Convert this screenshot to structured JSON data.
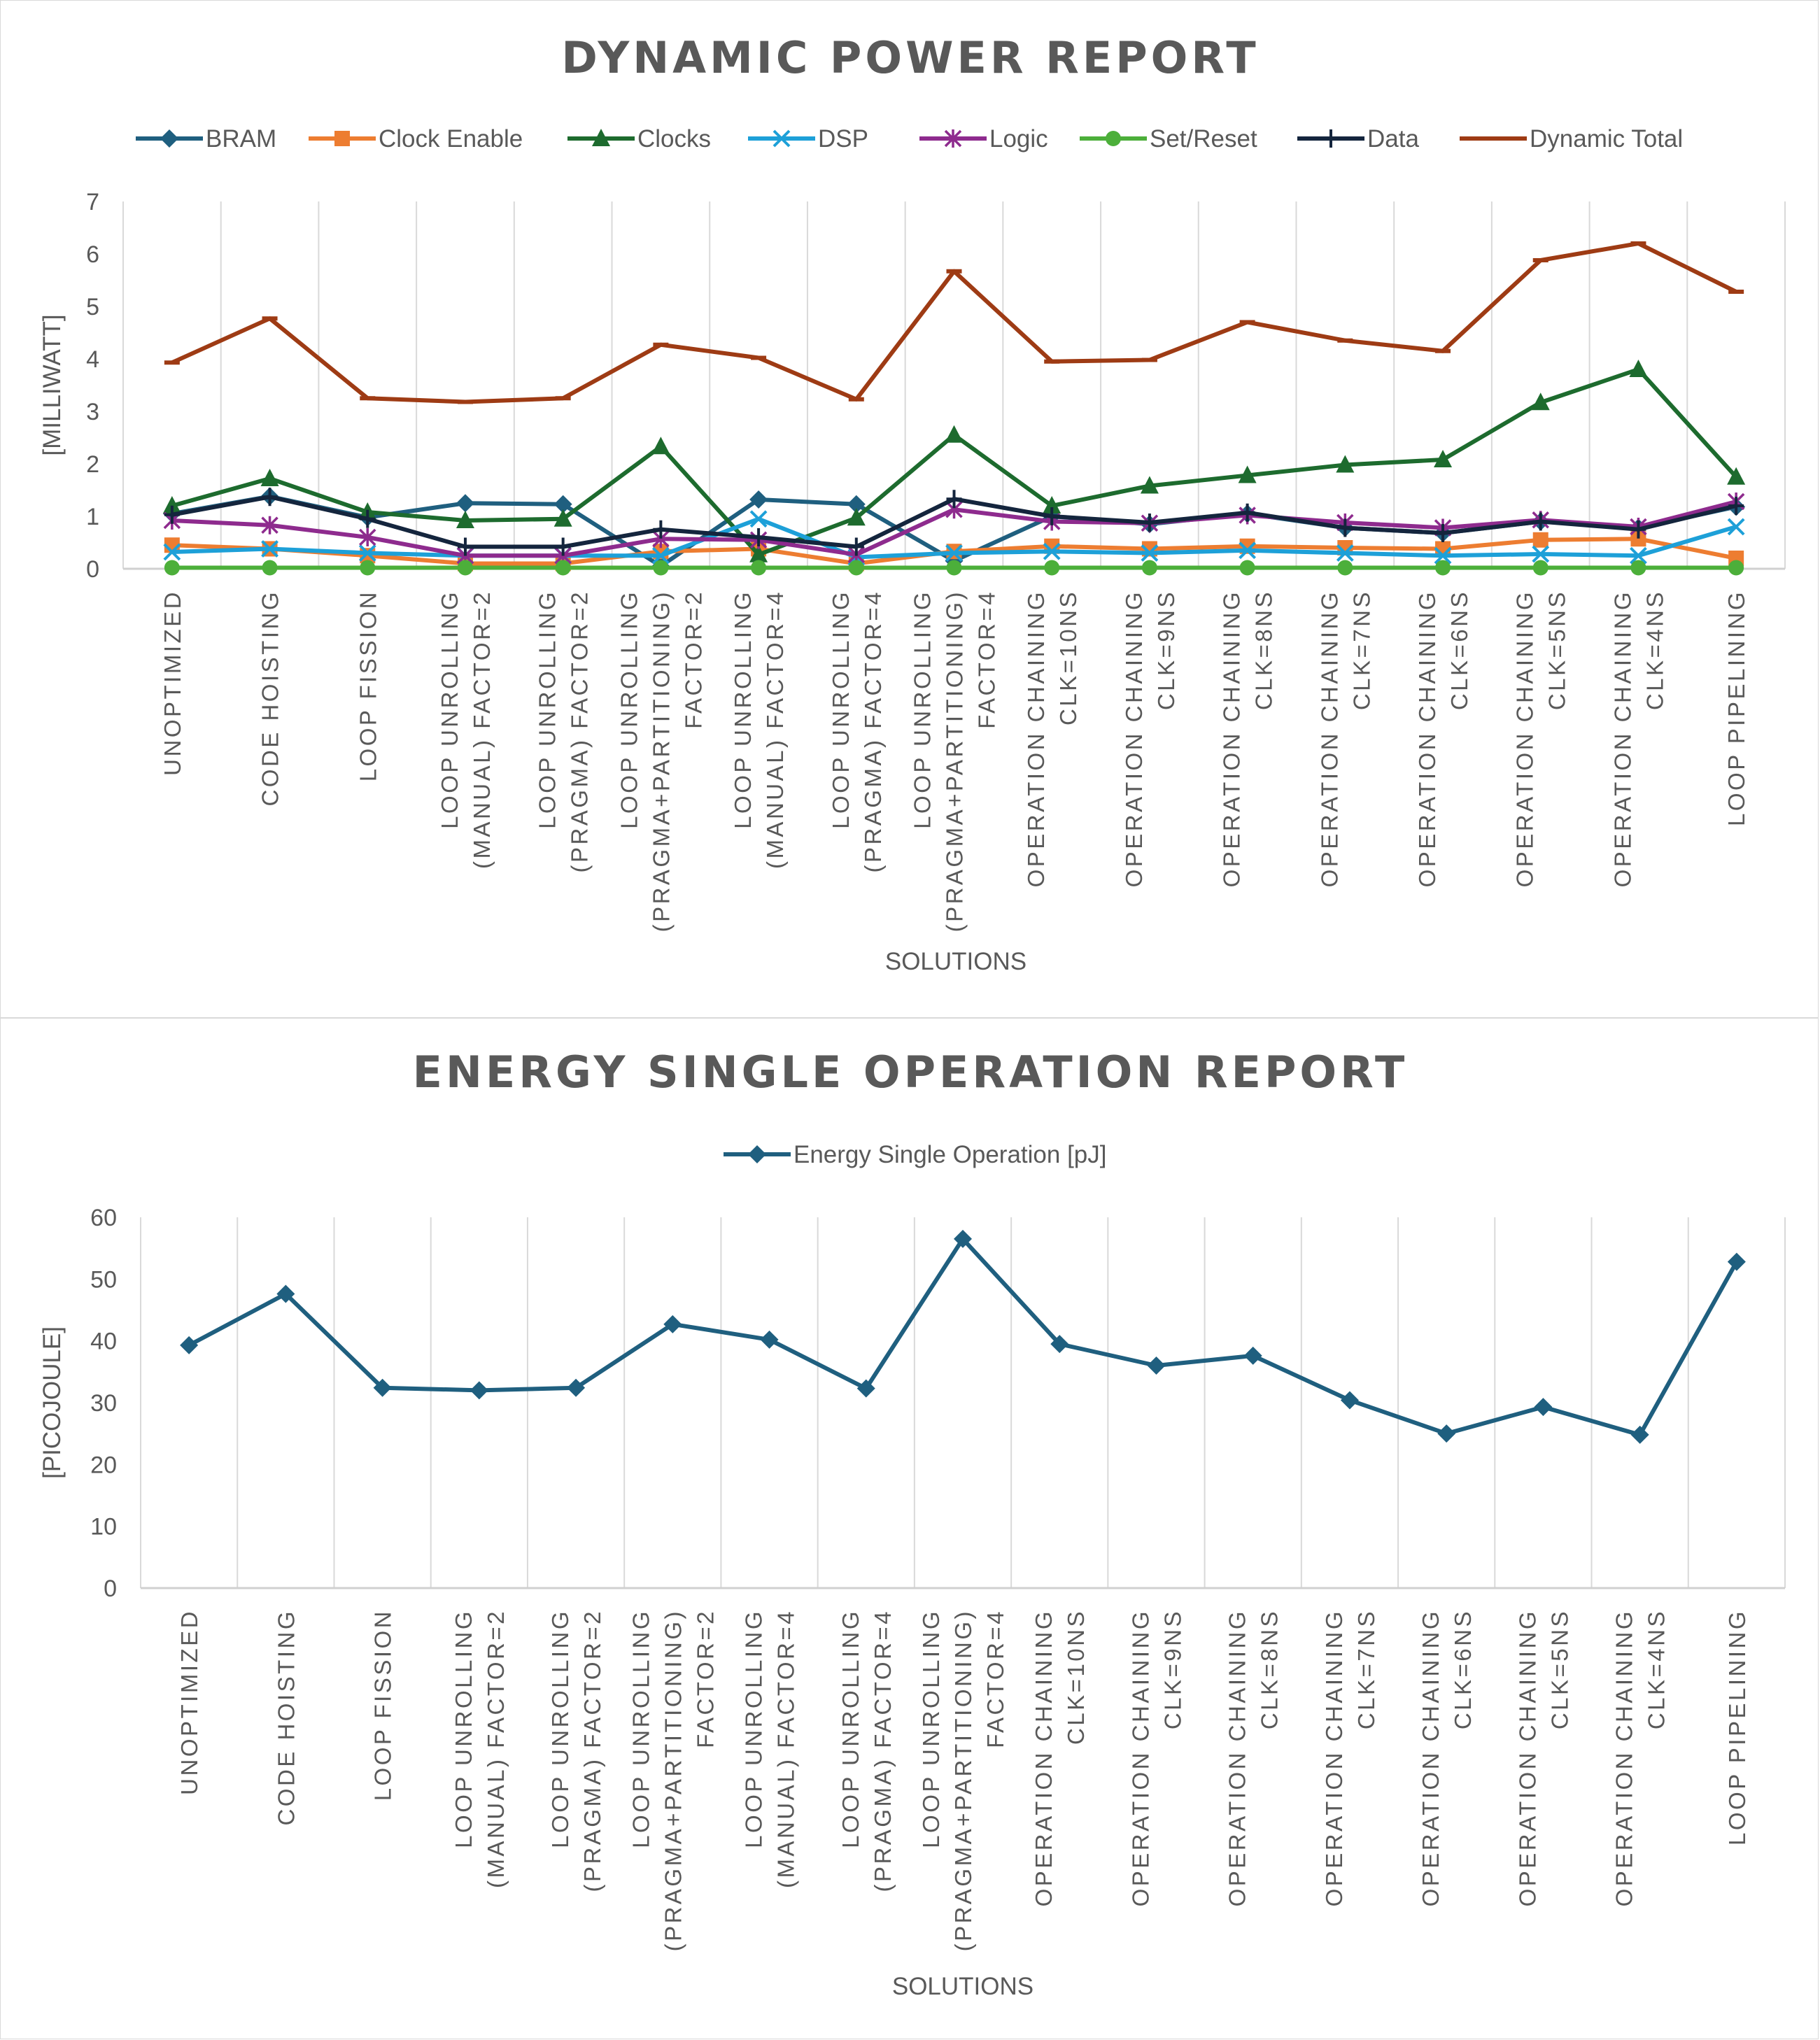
{
  "chart_data": [
    {
      "type": "line",
      "title": "DYNAMIC POWER REPORT",
      "xlabel": "SOLUTIONS",
      "ylabel": "[MILLIWATT]",
      "ylim": [
        0,
        7
      ],
      "yticks": [
        "0",
        "1",
        "2",
        "3",
        "4",
        "5",
        "6",
        "7"
      ],
      "grid": "vertical",
      "legend": "top",
      "categories": [
        "UNOPTIMIZED",
        "CODE HOISTING",
        "LOOP FISSION",
        "LOOP UNROLLING\n(MANUAL) FACTOR=2",
        "LOOP UNROLLING\n(PRAGMA) FACTOR=2",
        "LOOP UNROLLING\n(PRAGMA+PARTITIONING)\nFACTOR=2",
        "LOOP UNROLLING\n(MANUAL) FACTOR=4",
        "LOOP UNROLLING\n(PRAGMA) FACTOR=4",
        "LOOP UNROLLING\n(PRAGMA+PARTITIONING)\nFACTOR=4",
        "OPERATION CHAINING\nCLK=10NS",
        "OPERATION CHAINING\nCLK=9NS",
        "OPERATION CHAINING\nCLK=8NS",
        "OPERATION CHAINING\nCLK=7NS",
        "OPERATION CHAINING\nCLK=6NS",
        "OPERATION CHAINING\nCLK=5NS",
        "OPERATION CHAINING\nCLK=4NS",
        "LOOP PIPELINING"
      ],
      "series": [
        {
          "name": "BRAM",
          "color": "#1f5f7f",
          "marker": "diamond",
          "values": [
            1.05,
            1.38,
            0.98,
            1.25,
            1.23,
            0.05,
            1.32,
            1.23,
            0.15,
            1.0,
            0.85,
            1.05,
            0.78,
            0.68,
            0.9,
            0.78,
            1.18
          ]
        },
        {
          "name": "Clock Enable",
          "color": "#ed7d31",
          "marker": "square",
          "values": [
            0.45,
            0.38,
            0.25,
            0.1,
            0.1,
            0.33,
            0.38,
            0.1,
            0.33,
            0.43,
            0.38,
            0.43,
            0.4,
            0.38,
            0.55,
            0.57,
            0.2
          ]
        },
        {
          "name": "Clocks",
          "color": "#1d6b2e",
          "marker": "triangle",
          "values": [
            1.2,
            1.72,
            1.08,
            0.92,
            0.95,
            2.33,
            0.27,
            0.97,
            2.55,
            1.2,
            1.58,
            1.78,
            1.98,
            2.08,
            3.17,
            3.8,
            1.75
          ]
        },
        {
          "name": "DSP",
          "color": "#1da0d8",
          "marker": "x",
          "values": [
            0.32,
            0.38,
            0.3,
            0.25,
            0.25,
            0.25,
            0.95,
            0.22,
            0.3,
            0.33,
            0.3,
            0.35,
            0.3,
            0.25,
            0.28,
            0.25,
            0.8
          ]
        },
        {
          "name": "Logic",
          "color": "#8e2b8e",
          "marker": "star",
          "values": [
            0.92,
            0.83,
            0.6,
            0.25,
            0.25,
            0.57,
            0.55,
            0.27,
            1.13,
            0.9,
            0.87,
            1.02,
            0.88,
            0.78,
            0.93,
            0.8,
            1.28
          ]
        },
        {
          "name": "Set/Reset",
          "color": "#4caf3a",
          "marker": "circle",
          "values": [
            0.02,
            0.02,
            0.02,
            0.02,
            0.02,
            0.02,
            0.02,
            0.02,
            0.02,
            0.02,
            0.02,
            0.02,
            0.02,
            0.02,
            0.02,
            0.02,
            0.02
          ]
        },
        {
          "name": "Data",
          "color": "#14253d",
          "marker": "plus",
          "values": [
            1.03,
            1.37,
            0.95,
            0.42,
            0.42,
            0.75,
            0.6,
            0.42,
            1.33,
            1.0,
            0.88,
            1.07,
            0.78,
            0.68,
            0.9,
            0.75,
            1.2
          ]
        },
        {
          "name": "Dynamic Total",
          "color": "#9e3b14",
          "marker": "dash",
          "values": [
            3.93,
            4.77,
            3.25,
            3.18,
            3.25,
            4.27,
            4.02,
            3.23,
            5.67,
            3.95,
            3.98,
            4.7,
            4.35,
            4.15,
            5.88,
            6.2,
            5.28
          ]
        }
      ]
    },
    {
      "type": "line",
      "title": "ENERGY SINGLE OPERATION REPORT",
      "xlabel": "SOLUTIONS",
      "ylabel": "[PICOJOULE]",
      "ylim": [
        0,
        60
      ],
      "yticks": [
        "0",
        "10",
        "20",
        "30",
        "40",
        "50",
        "60"
      ],
      "grid": "vertical",
      "legend": "top",
      "categories": [
        "UNOPTIMIZED",
        "CODE HOISTING",
        "LOOP FISSION",
        "LOOP UNROLLING\n(MANUAL) FACTOR=2",
        "LOOP UNROLLING\n(PRAGMA) FACTOR=2",
        "LOOP UNROLLING\n(PRAGMA+PARTITIONING)\nFACTOR=2",
        "LOOP UNROLLING\n(MANUAL) FACTOR=4",
        "LOOP UNROLLING\n(PRAGMA) FACTOR=4",
        "LOOP UNROLLING\n(PRAGMA+PARTITIONING)\nFACTOR=4",
        "OPERATION CHAINING\nCLK=10NS",
        "OPERATION CHAINING\nCLK=9NS",
        "OPERATION CHAINING\nCLK=8NS",
        "OPERATION CHAINING\nCLK=7NS",
        "OPERATION CHAINING\nCLK=6NS",
        "OPERATION CHAINING\nCLK=5NS",
        "OPERATION CHAINING\nCLK=4NS",
        "LOOP PIPELINING"
      ],
      "series": [
        {
          "name": "Energy Single Operation [pJ]",
          "color": "#1f5f7f",
          "marker": "diamond",
          "values": [
            39.3,
            47.6,
            32.4,
            32.0,
            32.4,
            42.7,
            40.2,
            32.3,
            56.5,
            39.5,
            36.0,
            37.6,
            30.4,
            25.0,
            29.3,
            24.8,
            52.8
          ]
        }
      ]
    }
  ]
}
